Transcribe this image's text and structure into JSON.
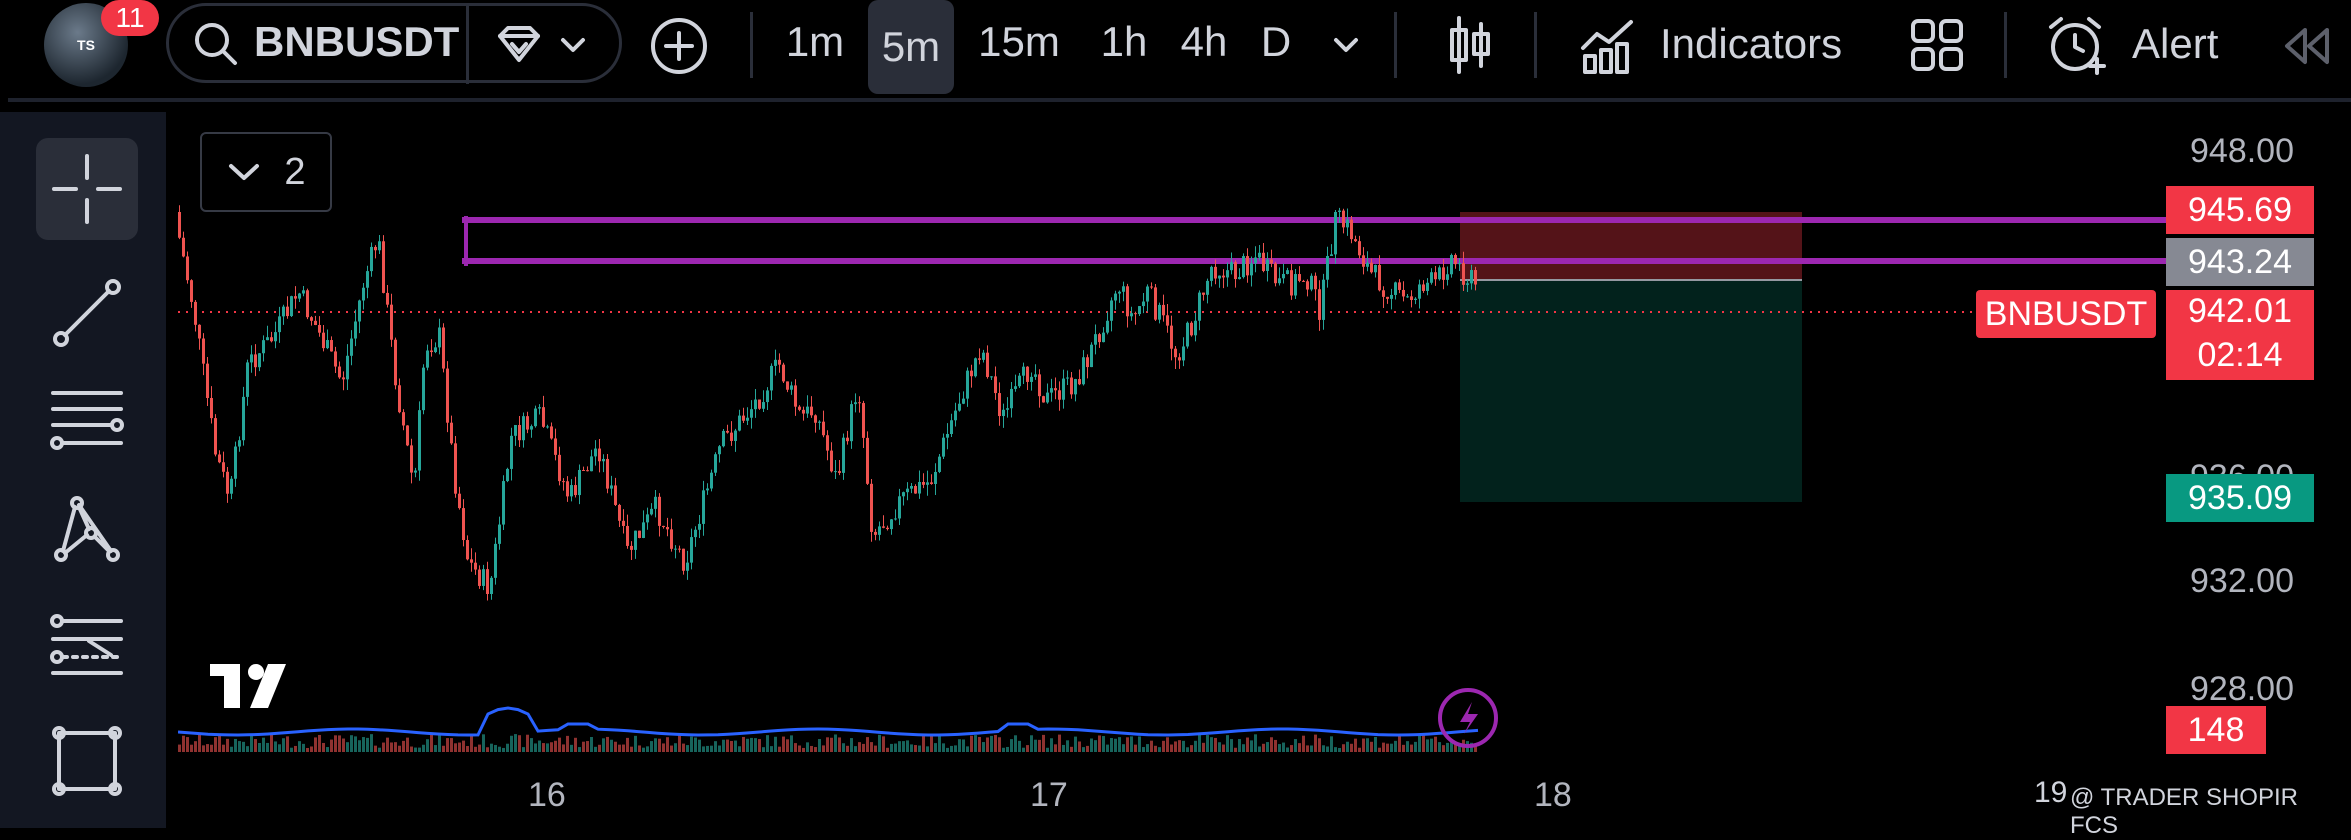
{
  "avatar": {
    "initials": "TS"
  },
  "notifications": {
    "count": "11"
  },
  "symbol": {
    "name": "BNBUSDT"
  },
  "timeframes": [
    "1m",
    "5m",
    "15m",
    "1h",
    "4h",
    "D"
  ],
  "active_timeframe": "5m",
  "toolbar": {
    "indicators_label": "Indicators",
    "alert_label": "Alert"
  },
  "collapse": {
    "count": "2"
  },
  "price_axis": [
    "948.00",
    "936.00",
    "932.00",
    "928.00"
  ],
  "tags": {
    "upper_line": "945.69",
    "lower_line": "943.24",
    "symbol_label": "BNBUSDT",
    "last_price": "942.01",
    "countdown": "02:14",
    "target": "935.09",
    "volume": "148"
  },
  "time_axis": [
    "16",
    "17",
    "18"
  ],
  "watermark": "@ TRADER SHOPIR FCS",
  "watermark_prefix": "19",
  "colors": {
    "up": "#26a69a",
    "down": "#ef5350",
    "price_tag": "#f23645",
    "line_purple": "#9c27b0",
    "target_green": "#089981",
    "volume_line": "#2962ff"
  },
  "icons": [
    "search-icon",
    "diamond-icon",
    "chevron-down-icon",
    "plus-circle-icon",
    "candles-icon",
    "indicators-icon",
    "layout-icon",
    "alarm-icon",
    "collapse-left-icon",
    "crosshair-icon",
    "trendline-icon",
    "horizontal-lines-icon",
    "pattern-icon",
    "forecast-icon",
    "rectangle-icon",
    "lightning-icon",
    "tradingview-logo"
  ]
}
